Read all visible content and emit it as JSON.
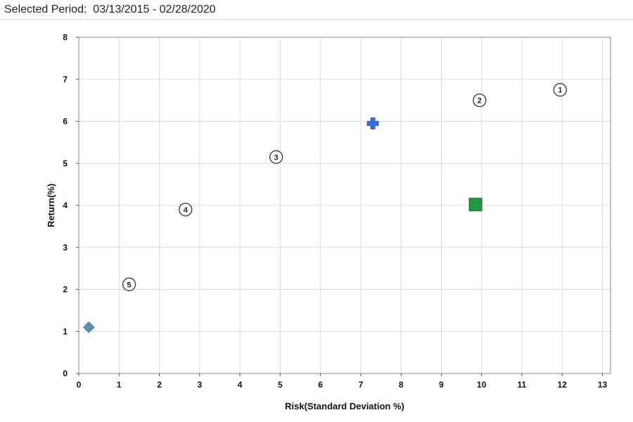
{
  "header": {
    "period_label": "Selected Period:",
    "period_range": "03/13/2015 - 02/28/2020"
  },
  "chart_data": {
    "type": "scatter",
    "xlabel": "Risk(Standard Deviation %)",
    "ylabel": "Return(%)",
    "xlim": [
      0,
      13.2
    ],
    "ylim": [
      0,
      8
    ],
    "xticks": [
      0,
      1,
      2,
      3,
      4,
      5,
      6,
      7,
      8,
      9,
      10,
      11,
      12,
      13
    ],
    "yticks": [
      0,
      1,
      2,
      3,
      4,
      5,
      6,
      7,
      8
    ],
    "grid": true,
    "numbered_points": [
      {
        "label": "1",
        "x": 11.95,
        "y": 6.75
      },
      {
        "label": "2",
        "x": 9.95,
        "y": 6.5
      },
      {
        "label": "3",
        "x": 4.9,
        "y": 5.15
      },
      {
        "label": "4",
        "x": 2.65,
        "y": 3.9
      },
      {
        "label": "5",
        "x": 1.25,
        "y": 2.12
      }
    ],
    "marker_points": [
      {
        "marker": "plus",
        "color": "#2f6fd8",
        "x": 7.3,
        "y": 5.95
      },
      {
        "marker": "square",
        "color": "#1f9a3c",
        "x": 9.85,
        "y": 4.02
      },
      {
        "marker": "diamond",
        "color": "#5b93ad",
        "x": 0.25,
        "y": 1.1
      }
    ]
  }
}
